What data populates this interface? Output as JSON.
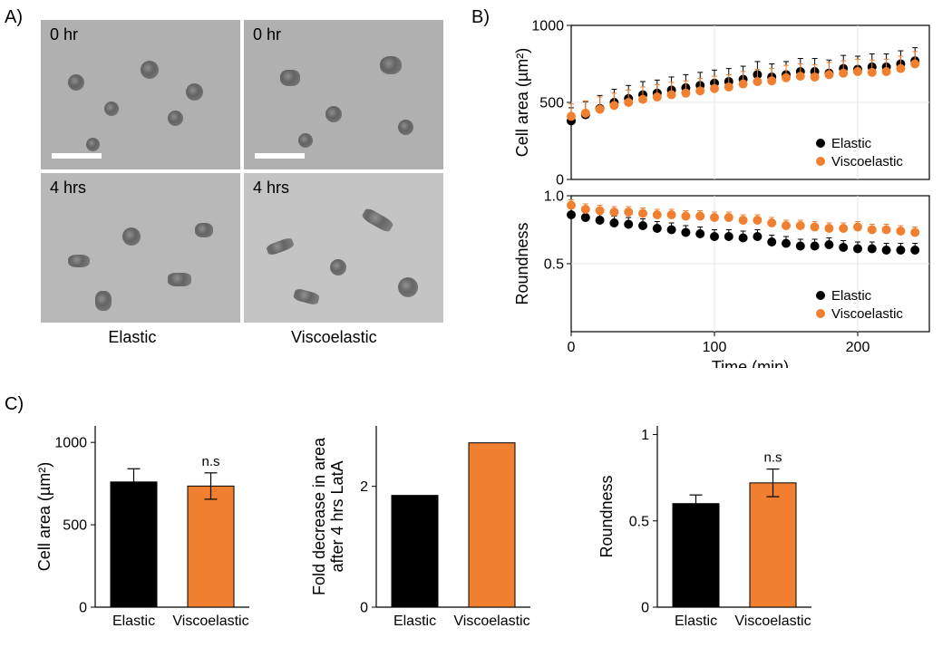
{
  "panelA": {
    "label": "A)",
    "images": {
      "tl": "0 hr",
      "tr": "0 hr",
      "bl": "4 hrs",
      "br": "4 hrs"
    },
    "col_labels": {
      "left": "Elastic",
      "right": "Viscoelastic"
    },
    "image_bg": "#bfbfbf",
    "image_bg_dark": "#b6b6b6",
    "scale_bar_color": "#ffffff"
  },
  "panelB": {
    "label": "B)",
    "chart_top": {
      "type": "scatter",
      "ylabel": "Cell area (µm²)",
      "ylim": [
        0,
        1000
      ],
      "yticks": [
        0,
        500,
        1000
      ],
      "x": [
        0,
        10,
        20,
        30,
        40,
        50,
        60,
        70,
        80,
        90,
        100,
        110,
        120,
        130,
        140,
        150,
        160,
        170,
        180,
        190,
        200,
        210,
        220,
        230,
        240
      ],
      "elastic": {
        "y": [
          380,
          420,
          460,
          500,
          525,
          550,
          560,
          580,
          595,
          610,
          625,
          635,
          650,
          680,
          665,
          680,
          700,
          700,
          690,
          720,
          715,
          730,
          730,
          750,
          770
        ],
        "err": 85,
        "color": "#000000"
      },
      "viscoelastic": {
        "y": [
          410,
          430,
          455,
          480,
          500,
          520,
          535,
          550,
          560,
          575,
          590,
          600,
          620,
          635,
          640,
          660,
          670,
          665,
          680,
          690,
          700,
          695,
          700,
          720,
          750
        ],
        "err": 80,
        "color": "#f08030"
      },
      "grid_color": "#e6e6e6",
      "legend": {
        "pos": "bottom-right",
        "items": [
          {
            "label": "Elastic",
            "color": "#000000"
          },
          {
            "label": "Viscoelastic",
            "color": "#f08030"
          }
        ]
      },
      "marker_r": 5
    },
    "chart_bottom": {
      "type": "scatter",
      "ylabel": "Roundness",
      "ylim": [
        0,
        1.0
      ],
      "yticks": [
        0.5,
        1.0
      ],
      "ytick_labels": [
        "0.5",
        "1.0"
      ],
      "x": [
        0,
        10,
        20,
        30,
        40,
        50,
        60,
        70,
        80,
        90,
        100,
        110,
        120,
        130,
        140,
        150,
        160,
        170,
        180,
        190,
        200,
        210,
        220,
        230,
        240
      ],
      "elastic": {
        "y": [
          0.86,
          0.84,
          0.82,
          0.8,
          0.79,
          0.78,
          0.76,
          0.75,
          0.73,
          0.72,
          0.7,
          0.7,
          0.69,
          0.7,
          0.66,
          0.65,
          0.63,
          0.63,
          0.64,
          0.62,
          0.61,
          0.61,
          0.6,
          0.6,
          0.6
        ],
        "err": 0.05,
        "color": "#000000"
      },
      "viscoelastic": {
        "y": [
          0.93,
          0.9,
          0.89,
          0.88,
          0.88,
          0.87,
          0.86,
          0.86,
          0.85,
          0.85,
          0.84,
          0.84,
          0.82,
          0.82,
          0.8,
          0.78,
          0.78,
          0.77,
          0.76,
          0.76,
          0.77,
          0.75,
          0.75,
          0.74,
          0.73
        ],
        "err": 0.04,
        "color": "#f08030"
      },
      "grid_color": "#e6e6e6",
      "legend": {
        "pos": "bottom-right",
        "items": [
          {
            "label": "Elastic",
            "color": "#000000"
          },
          {
            "label": "Viscoelastic",
            "color": "#f08030"
          }
        ]
      },
      "marker_r": 5
    },
    "xlabel": "Time (min)",
    "xlim": [
      0,
      250
    ],
    "xticks": [
      0,
      100,
      200
    ]
  },
  "panelC": {
    "label": "C)",
    "chart1": {
      "type": "bar",
      "ylabel": "Cell area (µm²)",
      "ylim": [
        0,
        1100
      ],
      "yticks": [
        0,
        500,
        1000
      ],
      "categories": [
        "Elastic",
        "Viscoelastic"
      ],
      "values": [
        760,
        735
      ],
      "errors": [
        80,
        80
      ],
      "colors": [
        "#000000",
        "#f08030"
      ],
      "annot": {
        "text": "n.s",
        "over": 1
      },
      "bar_width": 0.6
    },
    "chart2": {
      "type": "bar",
      "ylabel": "Fold decrease in area\nafter 4 hrs LatA",
      "ylim": [
        0,
        3.0
      ],
      "yticks": [
        0,
        2
      ],
      "categories": [
        "Elastic",
        "Viscoelastic"
      ],
      "values": [
        1.85,
        2.72
      ],
      "errors": [
        0,
        0
      ],
      "colors": [
        "#000000",
        "#f08030"
      ],
      "bar_width": 0.6
    },
    "chart3": {
      "type": "bar",
      "ylabel": "Roundness",
      "ylim": [
        0,
        1.05
      ],
      "yticks": [
        0,
        0.5,
        1.0
      ],
      "categories": [
        "Elastic",
        "Viscoelastic"
      ],
      "values": [
        0.6,
        0.72
      ],
      "errors": [
        0.05,
        0.08
      ],
      "colors": [
        "#000000",
        "#f08030"
      ],
      "annot": {
        "text": "n.s",
        "over": 1
      },
      "bar_width": 0.6
    }
  },
  "fonts": {
    "axis_label": 18,
    "tick_label": 16,
    "legend": 15,
    "annot": 15
  }
}
